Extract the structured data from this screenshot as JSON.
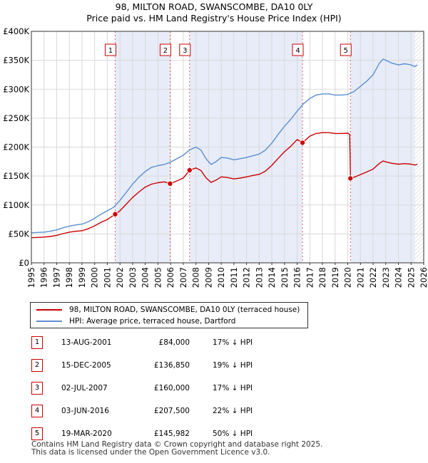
{
  "title_line1": "98, MILTON ROAD, SWANSCOMBE, DA10 0LY",
  "title_line2": "Price paid vs. HM Land Registry's House Price Index (HPI)",
  "chart_data": {
    "type": "line",
    "title": "98, MILTON ROAD, SWANSCOMBE, DA10 0LY",
    "subtitle": "Price paid vs. HM Land Registry's House Price Index (HPI)",
    "xlabel": "",
    "ylabel": "",
    "xlim": [
      1995,
      2026
    ],
    "ylim": [
      0,
      400000
    ],
    "x_ticks": [
      1995,
      1996,
      1997,
      1998,
      1999,
      2000,
      2001,
      2002,
      2003,
      2004,
      2005,
      2006,
      2007,
      2008,
      2009,
      2010,
      2011,
      2012,
      2013,
      2014,
      2015,
      2016,
      2017,
      2018,
      2019,
      2020,
      2021,
      2022,
      2023,
      2024,
      2025,
      2026
    ],
    "y_ticks": [
      0,
      50000,
      100000,
      150000,
      200000,
      250000,
      300000,
      350000,
      400000
    ],
    "y_tick_labels": [
      "£0",
      "£50K",
      "£100K",
      "£150K",
      "£200K",
      "£250K",
      "£300K",
      "£350K",
      "£400K"
    ],
    "grid": true,
    "future_hatch_from": 2025.3,
    "series": [
      {
        "name": "HPI: Average price, terraced house, Dartford",
        "color": "#5b8fd0",
        "points": [
          [
            1995.0,
            52000
          ],
          [
            1995.5,
            52500
          ],
          [
            1996.0,
            53000
          ],
          [
            1996.5,
            54500
          ],
          [
            1997.0,
            57000
          ],
          [
            1997.5,
            60500
          ],
          [
            1998.0,
            63500
          ],
          [
            1998.5,
            65500
          ],
          [
            1999.0,
            67000
          ],
          [
            1999.5,
            71000
          ],
          [
            2000.0,
            77000
          ],
          [
            2000.5,
            84000
          ],
          [
            2001.0,
            90000
          ],
          [
            2001.5,
            96000
          ],
          [
            2002.0,
            108000
          ],
          [
            2002.5,
            122000
          ],
          [
            2003.0,
            136000
          ],
          [
            2003.5,
            148000
          ],
          [
            2004.0,
            158000
          ],
          [
            2004.5,
            165000
          ],
          [
            2005.0,
            168000
          ],
          [
            2005.5,
            170000
          ],
          [
            2006.0,
            174000
          ],
          [
            2006.5,
            180000
          ],
          [
            2007.0,
            186000
          ],
          [
            2007.5,
            195000
          ],
          [
            2008.0,
            200000
          ],
          [
            2008.4,
            195000
          ],
          [
            2008.8,
            180000
          ],
          [
            2009.2,
            170000
          ],
          [
            2009.6,
            175000
          ],
          [
            2010.0,
            182000
          ],
          [
            2010.5,
            181000
          ],
          [
            2011.0,
            178000
          ],
          [
            2011.5,
            180000
          ],
          [
            2012.0,
            182000
          ],
          [
            2012.5,
            185000
          ],
          [
            2013.0,
            188000
          ],
          [
            2013.5,
            195000
          ],
          [
            2014.0,
            207000
          ],
          [
            2014.5,
            222000
          ],
          [
            2015.0,
            236000
          ],
          [
            2015.5,
            248000
          ],
          [
            2016.0,
            262000
          ],
          [
            2016.5,
            275000
          ],
          [
            2017.0,
            284000
          ],
          [
            2017.5,
            290000
          ],
          [
            2018.0,
            292000
          ],
          [
            2018.5,
            292000
          ],
          [
            2019.0,
            290000
          ],
          [
            2019.5,
            290000
          ],
          [
            2020.0,
            291000
          ],
          [
            2020.5,
            296000
          ],
          [
            2021.0,
            305000
          ],
          [
            2021.5,
            314000
          ],
          [
            2022.0,
            325000
          ],
          [
            2022.5,
            345000
          ],
          [
            2022.8,
            352000
          ],
          [
            2023.0,
            350000
          ],
          [
            2023.5,
            345000
          ],
          [
            2024.0,
            342000
          ],
          [
            2024.5,
            344000
          ],
          [
            2025.0,
            342000
          ],
          [
            2025.3,
            339000
          ],
          [
            2025.5,
            342000
          ]
        ]
      },
      {
        "name": "98, MILTON ROAD, SWANSCOMBE, DA10 0LY (terraced house)",
        "color": "#cc0000",
        "points": [
          [
            1995.0,
            43500
          ],
          [
            1995.5,
            44000
          ],
          [
            1996.0,
            44500
          ],
          [
            1996.5,
            45500
          ],
          [
            1997.0,
            47500
          ],
          [
            1997.5,
            50500
          ],
          [
            1998.0,
            53000
          ],
          [
            1998.5,
            54500
          ],
          [
            1999.0,
            55500
          ],
          [
            1999.5,
            59000
          ],
          [
            2000.0,
            64000
          ],
          [
            2000.5,
            70000
          ],
          [
            2001.0,
            75000
          ],
          [
            2001.62,
            84000
          ],
          [
            2002.0,
            90000
          ],
          [
            2002.5,
            101500
          ],
          [
            2003.0,
            113000
          ],
          [
            2003.5,
            122500
          ],
          [
            2004.0,
            131000
          ],
          [
            2004.5,
            136000
          ],
          [
            2005.0,
            138500
          ],
          [
            2005.5,
            140000
          ],
          [
            2005.96,
            136850
          ],
          [
            2006.5,
            141500
          ],
          [
            2007.0,
            146500
          ],
          [
            2007.5,
            160000
          ],
          [
            2008.0,
            164000
          ],
          [
            2008.4,
            159500
          ],
          [
            2008.8,
            147000
          ],
          [
            2009.2,
            139000
          ],
          [
            2009.6,
            143000
          ],
          [
            2010.0,
            148500
          ],
          [
            2010.5,
            147500
          ],
          [
            2011.0,
            145000
          ],
          [
            2011.5,
            146500
          ],
          [
            2012.0,
            148500
          ],
          [
            2012.5,
            151000
          ],
          [
            2013.0,
            153000
          ],
          [
            2013.5,
            158500
          ],
          [
            2014.0,
            168500
          ],
          [
            2014.5,
            180500
          ],
          [
            2015.0,
            192000
          ],
          [
            2015.5,
            201500
          ],
          [
            2016.0,
            213000
          ],
          [
            2016.42,
            207500
          ],
          [
            2016.8,
            215000
          ],
          [
            2017.0,
            219000
          ],
          [
            2017.5,
            223500
          ],
          [
            2018.0,
            225000
          ],
          [
            2018.5,
            225000
          ],
          [
            2019.0,
            223500
          ],
          [
            2019.5,
            223500
          ],
          [
            2020.0,
            224000
          ],
          [
            2020.15,
            222000
          ],
          [
            2020.21,
            145982
          ],
          [
            2020.5,
            148000
          ],
          [
            2021.0,
            152500
          ],
          [
            2021.5,
            157000
          ],
          [
            2022.0,
            162000
          ],
          [
            2022.5,
            172000
          ],
          [
            2022.8,
            176000
          ],
          [
            2023.0,
            174500
          ],
          [
            2023.5,
            172000
          ],
          [
            2024.0,
            170500
          ],
          [
            2024.5,
            171500
          ],
          [
            2025.0,
            170500
          ],
          [
            2025.3,
            169000
          ],
          [
            2025.5,
            170500
          ]
        ]
      }
    ],
    "transactions": [
      {
        "num": "1",
        "year": 2001.62,
        "price_value": 84000
      },
      {
        "num": "2",
        "year": 2005.96,
        "price_value": 136850
      },
      {
        "num": "3",
        "year": 2007.5,
        "price_value": 160000
      },
      {
        "num": "4",
        "year": 2016.42,
        "price_value": 207500
      },
      {
        "num": "5",
        "year": 2020.21,
        "price_value": 145982
      }
    ]
  },
  "legend": {
    "property_label": "98, MILTON ROAD, SWANSCOMBE, DA10 0LY (terraced house)",
    "hpi_label": "HPI: Average price, terraced house, Dartford",
    "property_color": "#cc0000",
    "hpi_color": "#5b8fd0"
  },
  "table": [
    {
      "num": "1",
      "date": "13-AUG-2001",
      "price": "£84,000",
      "hpi": "17% ↓ HPI"
    },
    {
      "num": "2",
      "date": "15-DEC-2005",
      "price": "£136,850",
      "hpi": "19% ↓ HPI"
    },
    {
      "num": "3",
      "date": "02-JUL-2007",
      "price": "£160,000",
      "hpi": "17% ↓ HPI"
    },
    {
      "num": "4",
      "date": "03-JUN-2016",
      "price": "£207,500",
      "hpi": "22% ↓ HPI"
    },
    {
      "num": "5",
      "date": "19-MAR-2020",
      "price": "£145,982",
      "hpi": "50% ↓ HPI"
    }
  ],
  "footer": {
    "line1": "Contains HM Land Registry data © Crown copyright and database right 2025.",
    "line2": "This data is licensed under the Open Government Licence v3.0."
  }
}
